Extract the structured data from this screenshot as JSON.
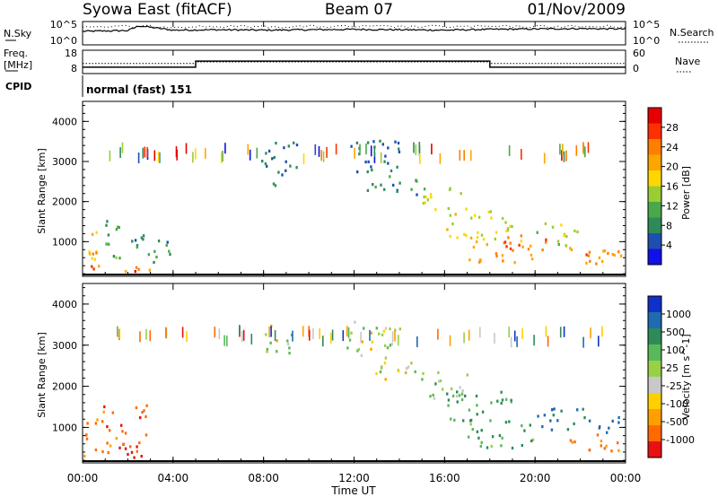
{
  "header": {
    "station": "Syowa East (fitACF)",
    "beam": "Beam 07",
    "date": "01/Nov/2009"
  },
  "panels": {
    "nsky": {
      "left_label": "N.Sky",
      "ticks": [
        "10^5",
        "10^0"
      ],
      "right_label": "N.Search",
      "right_ticks": [
        "10^5",
        "10^0"
      ]
    },
    "freq": {
      "left_label_1": "Freq.",
      "left_label_2": "[MHz]",
      "ticks": [
        "18",
        "8"
      ],
      "right_label": "Nave",
      "right_ticks": [
        "60",
        "0"
      ]
    },
    "cpid": {
      "left_label": "CPID",
      "mode_text": "normal (fast) 151"
    }
  },
  "colorbars": {
    "power": {
      "label": "Power [dB]",
      "ticks": [
        "28",
        "24",
        "20",
        "16",
        "12",
        "8",
        "4"
      ],
      "colors": [
        "#1010e8",
        "#1e4fb0",
        "#2e8b57",
        "#4aa84a",
        "#9acd32",
        "#ffd700",
        "#ffa500",
        "#ff7f00",
        "#ff3000",
        "#e60000"
      ]
    },
    "velocity": {
      "label": "Velocity [m s^-1]",
      "ticks": [
        "1000",
        "500",
        "100",
        "25",
        "-25",
        "-100",
        "-500",
        "-1000"
      ],
      "colors": [
        "#1030c8",
        "#1f6ab0",
        "#2e8b57",
        "#58b85a",
        "#98d048",
        "#c8c8c8",
        "#ffd000",
        "#ffa000",
        "#ff6a00",
        "#e81010"
      ]
    }
  },
  "x_axis": {
    "label": "Time UT",
    "ticks": [
      "00:00",
      "04:00",
      "08:00",
      "12:00",
      "16:00",
      "20:00",
      "00:00"
    ]
  },
  "chart_data": [
    {
      "type": "line",
      "title": "N.Sky",
      "x": [
        0,
        2,
        2.5,
        4,
        6,
        8,
        10,
        12,
        14,
        16,
        18,
        20,
        22,
        24
      ],
      "series": [
        {
          "name": "N.Sky",
          "values": [
            3.2,
            3.4,
            4.6,
            3.5,
            3.6,
            3.5,
            3.6,
            3.7,
            3.6,
            3.5,
            3.7,
            3.8,
            3.9,
            3.8
          ]
        }
      ],
      "ylim": [
        0,
        5
      ],
      "xlim": [
        0,
        24
      ]
    },
    {
      "type": "line",
      "title": "Freq.",
      "ylabel": "[MHz]",
      "x": [
        0,
        5,
        5,
        18,
        18,
        24
      ],
      "series": [
        {
          "name": "Freq.",
          "values": [
            11,
            11,
            15,
            15,
            11,
            11
          ]
        },
        {
          "name": "Nave",
          "values": [
            13.5,
            13.5,
            14.5,
            14.5,
            13.5,
            13.5
          ]
        }
      ],
      "ylim": [
        8,
        18
      ],
      "xlim": [
        0,
        24
      ]
    },
    {
      "type": "heatmap",
      "title": "Power",
      "ylabel": "Slant Range [km]",
      "xlabel": "Time UT",
      "xlim": [
        0,
        24
      ],
      "ylim": [
        180,
        4500
      ],
      "y_ticks": [
        1000,
        2000,
        3000,
        4000
      ],
      "zlim": [
        0,
        30
      ],
      "regions": [
        {
          "t0": 0.0,
          "t1": 0.7,
          "r0": 300,
          "r1": 1300,
          "v": 18
        },
        {
          "t0": 0.3,
          "t1": 1.2,
          "r0": 350,
          "r1": 800,
          "v": 24
        },
        {
          "t0": 1.0,
          "t1": 3.0,
          "r0": 250,
          "r1": 450,
          "v": 20
        },
        {
          "t0": 1.6,
          "t1": 2.5,
          "r0": 250,
          "r1": 380,
          "v": 27
        },
        {
          "t0": 1.0,
          "t1": 2.0,
          "r0": 600,
          "r1": 1600,
          "v": 10
        },
        {
          "t0": 2.0,
          "t1": 4.0,
          "r0": 500,
          "r1": 1200,
          "v": 8
        },
        {
          "t0": 7.5,
          "t1": 9.5,
          "r0": 2800,
          "r1": 3500,
          "v": 6
        },
        {
          "t0": 8.3,
          "t1": 8.8,
          "r0": 2200,
          "r1": 3000,
          "v": 5
        },
        {
          "t0": 11.5,
          "t1": 14.0,
          "r0": 2700,
          "r1": 3600,
          "v": 6
        },
        {
          "t0": 12.5,
          "t1": 15.0,
          "r0": 2200,
          "r1": 2700,
          "v": 8
        },
        {
          "t0": 15.0,
          "t1": 17.0,
          "r0": 1800,
          "r1": 2400,
          "v": 14
        },
        {
          "t0": 16.0,
          "t1": 19.0,
          "r0": 1100,
          "r1": 1900,
          "v": 16
        },
        {
          "t0": 17.0,
          "t1": 20.0,
          "r0": 500,
          "r1": 1200,
          "v": 20
        },
        {
          "t0": 18.5,
          "t1": 20.5,
          "r0": 700,
          "r1": 1100,
          "v": 24
        },
        {
          "t0": 20.0,
          "t1": 22.0,
          "r0": 900,
          "r1": 1500,
          "v": 14
        },
        {
          "t0": 21.5,
          "t1": 24.0,
          "r0": 450,
          "r1": 900,
          "v": 20
        },
        {
          "t0": 22.0,
          "t1": 24.0,
          "r0": 600,
          "r1": 800,
          "v": 24
        }
      ]
    },
    {
      "type": "heatmap",
      "title": "Velocity",
      "ylabel": "Slant Range [km]",
      "xlabel": "Time UT",
      "xlim": [
        0,
        24
      ],
      "ylim": [
        180,
        4500
      ],
      "y_ticks": [
        1000,
        2000,
        3000,
        4000
      ],
      "zlim": [
        -1000,
        1000
      ],
      "regions": [
        {
          "t0": 0.0,
          "t1": 0.7,
          "r0": 300,
          "r1": 1300,
          "v": -300
        },
        {
          "t0": 0.8,
          "t1": 2.8,
          "r0": 400,
          "r1": 1600,
          "v": -400
        },
        {
          "t0": 1.5,
          "t1": 2.6,
          "r0": 250,
          "r1": 700,
          "v": -600
        },
        {
          "t0": 8.0,
          "t1": 9.5,
          "r0": 2800,
          "r1": 3500,
          "v": 10
        },
        {
          "t0": 11.5,
          "t1": 14.0,
          "r0": 2700,
          "r1": 3600,
          "v": 0
        },
        {
          "t0": 12.5,
          "t1": 15.0,
          "r0": 2200,
          "r1": 2700,
          "v": 15
        },
        {
          "t0": 15.0,
          "t1": 17.0,
          "r0": 1700,
          "r1": 2400,
          "v": 150
        },
        {
          "t0": 16.0,
          "t1": 19.0,
          "r0": 1100,
          "r1": 1900,
          "v": 300
        },
        {
          "t0": 17.0,
          "t1": 20.0,
          "r0": 500,
          "r1": 1200,
          "v": 250
        },
        {
          "t0": 20.0,
          "t1": 22.5,
          "r0": 900,
          "r1": 1500,
          "v": 600
        },
        {
          "t0": 21.5,
          "t1": 24.0,
          "r0": 450,
          "r1": 900,
          "v": -300
        },
        {
          "t0": 22.5,
          "t1": 24.0,
          "r0": 900,
          "r1": 1300,
          "v": 700
        }
      ]
    }
  ]
}
